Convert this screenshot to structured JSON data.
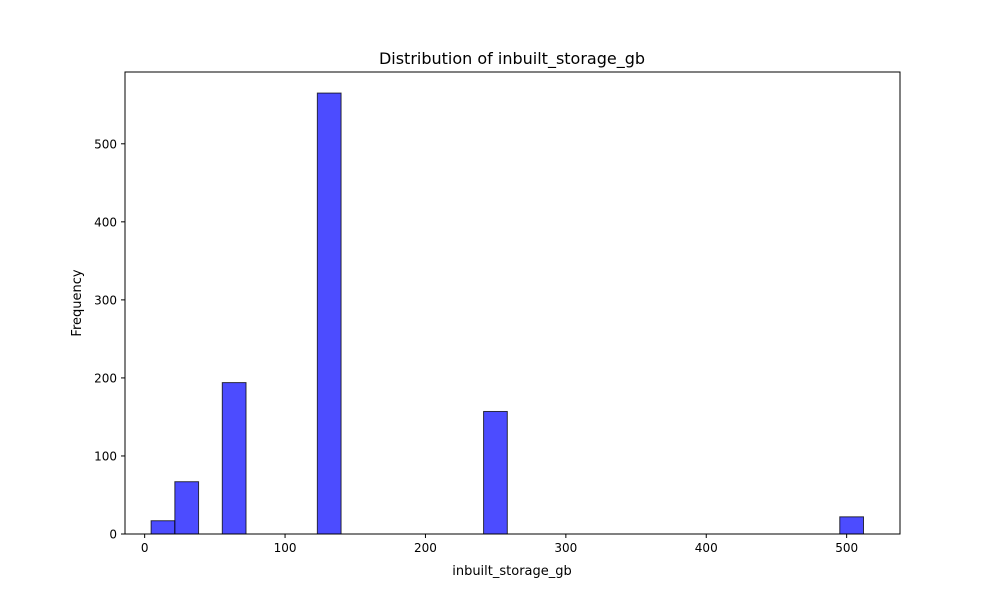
{
  "chart_data": {
    "type": "bar",
    "title": "Distribution of inbuilt_storage_gb",
    "xlabel": "inbuilt_storage_gb",
    "ylabel": "Frequency",
    "xlim": [
      -14,
      538
    ],
    "ylim": [
      0,
      592
    ],
    "xticks": [
      0,
      100,
      200,
      300,
      400,
      500
    ],
    "yticks": [
      0,
      100,
      200,
      300,
      400,
      500
    ],
    "grid": false,
    "bin_width": 16.9,
    "bars": [
      {
        "x_start": 4.6,
        "x_end": 21.5,
        "value": 17
      },
      {
        "x_start": 21.5,
        "x_end": 38.4,
        "value": 67
      },
      {
        "x_start": 55.3,
        "x_end": 72.2,
        "value": 194
      },
      {
        "x_start": 123.0,
        "x_end": 139.9,
        "value": 565
      },
      {
        "x_start": 241.4,
        "x_end": 258.3,
        "value": 157
      },
      {
        "x_start": 495.1,
        "x_end": 512.0,
        "value": 22
      }
    ],
    "bar_color": "#0000ff",
    "bar_opacity": 0.7,
    "edge_color": "#000000"
  }
}
